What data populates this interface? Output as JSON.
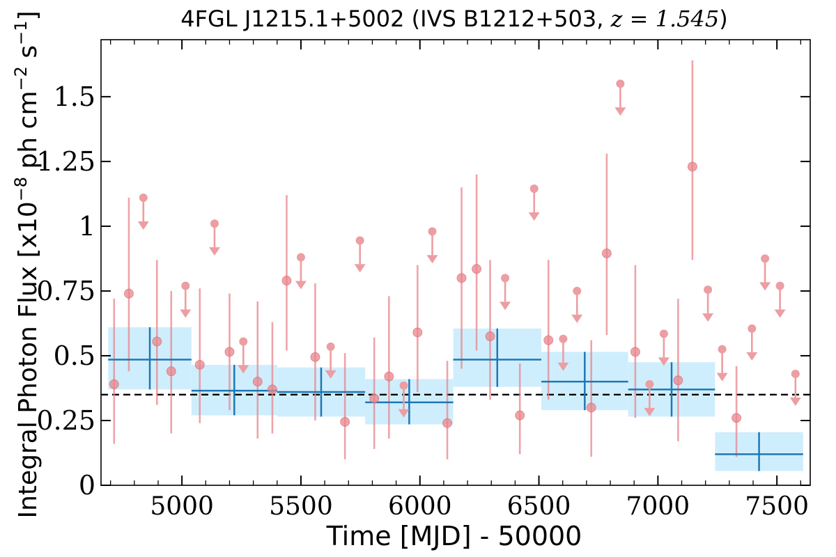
{
  "colors": {
    "point": "#e8868c",
    "upper_limit": "#ec9ea2",
    "bin_line": "#1f77b4",
    "bin_band": "#cfeefd",
    "mean_line": "#000000"
  },
  "chart_data": {
    "type": "scatter",
    "title": {
      "prefix": "4FGL J1215.1+5002 (IVS B1212+503, ",
      "math": "z = 1.545",
      "suffix": ")"
    },
    "xlabel": "Time [MJD] - 50000",
    "ylabel": {
      "pre": "Integral Photon Flux [x10",
      "exp1": "−8",
      "mid": " ph cm",
      "exp2": "−2",
      "mid2": " s",
      "exp3": "−1",
      "post": "]"
    },
    "xlim": [
      4660,
      7640
    ],
    "ylim": [
      0,
      1.72
    ],
    "x_ticks": [
      {
        "value": 5000,
        "label": "5000"
      },
      {
        "value": 5500,
        "label": "5500"
      },
      {
        "value": 6000,
        "label": "6000"
      },
      {
        "value": 6500,
        "label": "6500"
      },
      {
        "value": 7000,
        "label": "7000"
      },
      {
        "value": 7500,
        "label": "7500"
      }
    ],
    "y_ticks": [
      {
        "value": 0,
        "label": "0"
      },
      {
        "value": 0.25,
        "label": "0.25"
      },
      {
        "value": 0.5,
        "label": "0.5"
      },
      {
        "value": 0.75,
        "label": "0.75"
      },
      {
        "value": 1,
        "label": "1"
      },
      {
        "value": 1.25,
        "label": "1.25"
      },
      {
        "value": 1.5,
        "label": "1.5"
      }
    ],
    "mean_flux": 0.35,
    "points": [
      {
        "x": 4715,
        "y": 0.39,
        "lo": 0.16,
        "hi": 0.72
      },
      {
        "x": 4777,
        "y": 0.74,
        "lo": 0.44,
        "hi": 1.11
      },
      {
        "x": 4895,
        "y": 0.555,
        "lo": 0.31,
        "hi": 0.87
      },
      {
        "x": 4955,
        "y": 0.44,
        "lo": 0.2,
        "hi": 0.75
      },
      {
        "x": 5075,
        "y": 0.465,
        "lo": 0.24,
        "hi": 0.76
      },
      {
        "x": 5200,
        "y": 0.515,
        "lo": 0.29,
        "hi": 0.74
      },
      {
        "x": 5318,
        "y": 0.4,
        "lo": 0.18,
        "hi": 0.71
      },
      {
        "x": 5380,
        "y": 0.37,
        "lo": 0.2,
        "hi": 0.63
      },
      {
        "x": 5440,
        "y": 0.79,
        "lo": 0.52,
        "hi": 1.12
      },
      {
        "x": 5560,
        "y": 0.495,
        "lo": 0.25,
        "hi": 0.78
      },
      {
        "x": 5685,
        "y": 0.245,
        "lo": 0.1,
        "hi": 0.51
      },
      {
        "x": 5808,
        "y": 0.335,
        "lo": 0.14,
        "hi": 0.57
      },
      {
        "x": 5870,
        "y": 0.42,
        "lo": 0.18,
        "hi": 0.73
      },
      {
        "x": 5990,
        "y": 0.59,
        "lo": 0.36,
        "hi": 0.85
      },
      {
        "x": 6115,
        "y": 0.24,
        "lo": 0.1,
        "hi": 0.48
      },
      {
        "x": 6175,
        "y": 0.8,
        "lo": 0.45,
        "hi": 1.15
      },
      {
        "x": 6238,
        "y": 0.835,
        "lo": 0.52,
        "hi": 1.2
      },
      {
        "x": 6295,
        "y": 0.575,
        "lo": 0.33,
        "hi": 0.87
      },
      {
        "x": 6420,
        "y": 0.27,
        "lo": 0.12,
        "hi": 0.47
      },
      {
        "x": 6540,
        "y": 0.56,
        "lo": 0.33,
        "hi": 0.87
      },
      {
        "x": 6720,
        "y": 0.3,
        "lo": 0.11,
        "hi": 0.56
      },
      {
        "x": 6785,
        "y": 0.895,
        "lo": 0.58,
        "hi": 1.28
      },
      {
        "x": 6905,
        "y": 0.515,
        "lo": 0.26,
        "hi": 0.85
      },
      {
        "x": 7085,
        "y": 0.405,
        "lo": 0.17,
        "hi": 0.72
      },
      {
        "x": 7145,
        "y": 1.23,
        "lo": 0.87,
        "hi": 1.64
      },
      {
        "x": 7330,
        "y": 0.26,
        "lo": 0.11,
        "hi": 0.46
      }
    ],
    "upper_limits": [
      {
        "x": 4838,
        "y": 1.11
      },
      {
        "x": 5015,
        "y": 0.77
      },
      {
        "x": 5137,
        "y": 1.01
      },
      {
        "x": 5258,
        "y": 0.555
      },
      {
        "x": 5500,
        "y": 0.88
      },
      {
        "x": 5625,
        "y": 0.535
      },
      {
        "x": 5748,
        "y": 0.945
      },
      {
        "x": 5932,
        "y": 0.385
      },
      {
        "x": 6052,
        "y": 0.98
      },
      {
        "x": 6358,
        "y": 0.8
      },
      {
        "x": 6480,
        "y": 1.145
      },
      {
        "x": 6602,
        "y": 0.565
      },
      {
        "x": 6660,
        "y": 0.75
      },
      {
        "x": 6842,
        "y": 1.55
      },
      {
        "x": 6965,
        "y": 0.39
      },
      {
        "x": 7025,
        "y": 0.585
      },
      {
        "x": 7210,
        "y": 0.755
      },
      {
        "x": 7270,
        "y": 0.525
      },
      {
        "x": 7395,
        "y": 0.605
      },
      {
        "x": 7450,
        "y": 0.875
      },
      {
        "x": 7513,
        "y": 0.77
      },
      {
        "x": 7578,
        "y": 0.43
      }
    ],
    "bins": [
      {
        "x0": 4690,
        "x1": 5040,
        "y": 0.485,
        "band_lo": 0.37,
        "band_hi": 0.61
      },
      {
        "x0": 5040,
        "x1": 5400,
        "y": 0.365,
        "band_lo": 0.27,
        "band_hi": 0.465
      },
      {
        "x0": 5400,
        "x1": 5770,
        "y": 0.36,
        "band_lo": 0.265,
        "band_hi": 0.455
      },
      {
        "x0": 5770,
        "x1": 6140,
        "y": 0.32,
        "band_lo": 0.235,
        "band_hi": 0.41
      },
      {
        "x0": 6140,
        "x1": 6510,
        "y": 0.485,
        "band_lo": 0.38,
        "band_hi": 0.605
      },
      {
        "x0": 6510,
        "x1": 6875,
        "y": 0.4,
        "band_lo": 0.29,
        "band_hi": 0.515
      },
      {
        "x0": 6875,
        "x1": 7240,
        "y": 0.37,
        "band_lo": 0.265,
        "band_hi": 0.475
      },
      {
        "x0": 7240,
        "x1": 7610,
        "y": 0.12,
        "band_lo": 0.055,
        "band_hi": 0.205
      }
    ]
  }
}
